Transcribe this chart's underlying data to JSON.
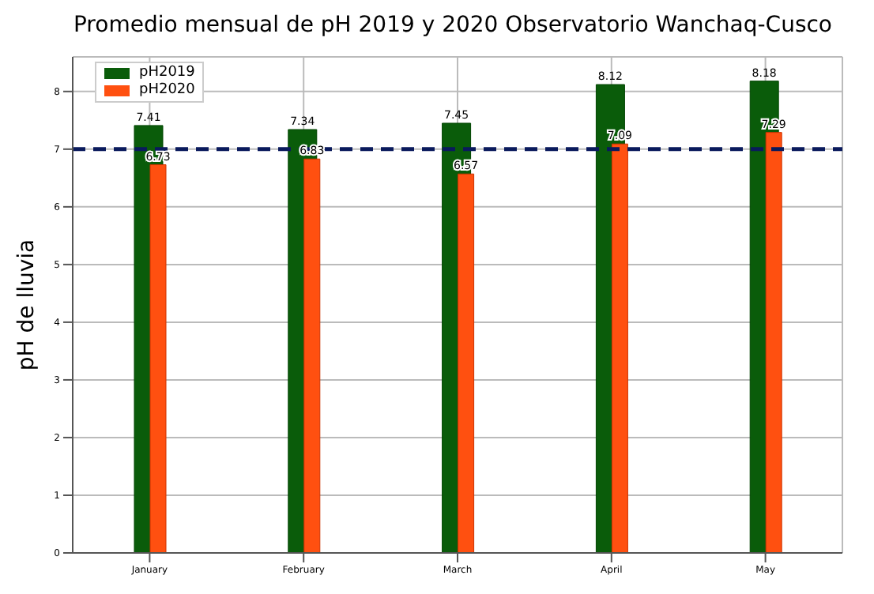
{
  "chart_data": {
    "type": "bar",
    "title": "Promedio mensual de pH 2019 y 2020 Observatorio Wanchaq-Cusco",
    "ylabel": "pH de lluvia",
    "categories": [
      "January",
      "February",
      "March",
      "April",
      "May"
    ],
    "series": [
      {
        "name": "pH2019",
        "color": "#0a5c0a",
        "values": [
          7.41,
          7.34,
          7.45,
          8.12,
          8.18
        ]
      },
      {
        "name": "pH2020",
        "color": "#ff5010",
        "values": [
          6.73,
          6.83,
          6.57,
          7.09,
          7.29
        ]
      }
    ],
    "data_labels": true,
    "ylim": [
      0,
      8.6
    ],
    "yticks": [
      0,
      1,
      2,
      3,
      4,
      5,
      6,
      7,
      8
    ],
    "grid": true,
    "legend": "top left",
    "ref_lines": [
      {
        "axis": "y",
        "value": 7,
        "color": "#0a1a5c",
        "line_style": "dashed"
      }
    ]
  }
}
